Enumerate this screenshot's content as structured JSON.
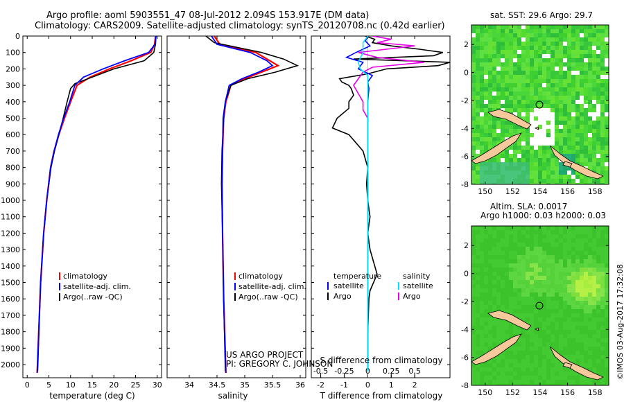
{
  "header": {
    "line1": "Argo profile: aoml 5903551_47 08-Jul-2012 2.094S 153.917E (DM data)",
    "line2": "Climatology: CARS2009. Satellite-adjusted climatology: synTS_20120708.nc (0.42d earlier)"
  },
  "maps": {
    "sst_title": "sat. SST: 29.6 Argo: 29.7",
    "sla_title1": "Altim. SLA: 0.0017",
    "sla_title2": "Argo h1000: 0.03 h2000: 0.03",
    "credit": "©IMOS 03-Aug-2017 17:32:08",
    "lon_ticks": [
      "150",
      "152",
      "154",
      "156",
      "158"
    ],
    "lat_ticks": [
      "2",
      "0",
      "-2",
      "-4",
      "-6",
      "-8"
    ],
    "float_location": {
      "lon": 153.917,
      "lat": -2.094
    }
  },
  "project": {
    "line1": "US ARGO PROJECT",
    "line2": "PI: GREGORY C. JOHNSON"
  },
  "legend_tsp": {
    "items": [
      "climatology",
      "satellite-adj. clim.",
      "Argo(..raw -QC)"
    ]
  },
  "legend_diff": {
    "temperature": "temperature",
    "salinity": "salinity",
    "satellite": "satellite",
    "argo": "Argo"
  },
  "colors": {
    "clim": "#ff0000",
    "sat": "#0000ff",
    "argo": "#000000",
    "sat_s": "#00e5ff",
    "argo_s": "#e600e6",
    "land": "#f5c99b"
  },
  "chart_data": [
    {
      "type": "line",
      "title": "",
      "xlabel": "temperature (deg C)",
      "ylabel": "",
      "xlim": [
        -1,
        31
      ],
      "ylim": [
        2080,
        0
      ],
      "xticks": [
        0,
        5,
        10,
        15,
        20,
        25,
        30
      ],
      "yticks": [
        0,
        100,
        200,
        300,
        400,
        500,
        600,
        700,
        800,
        900,
        1000,
        1100,
        1200,
        1300,
        1400,
        1500,
        1600,
        1700,
        1800,
        1900,
        2000
      ],
      "series": [
        {
          "name": "climatology",
          "depth": [
            0,
            50,
            100,
            150,
            200,
            250,
            300,
            400,
            500,
            600,
            700,
            800,
            1000,
            1200,
            1500,
            2050
          ],
          "values": [
            29.6,
            29.4,
            28.5,
            24,
            19,
            14.5,
            11.5,
            10,
            8.6,
            7.3,
            6.2,
            5.4,
            4.5,
            3.8,
            3.1,
            2.3
          ]
        },
        {
          "name": "satellite-adj. clim.",
          "depth": [
            0,
            50,
            100,
            150,
            200,
            250,
            300,
            400,
            500,
            600,
            700,
            800,
            1000,
            1200,
            1500,
            2050
          ],
          "values": [
            29.7,
            29.5,
            28,
            22.5,
            17.5,
            13,
            11,
            9.8,
            8.4,
            7.2,
            6.2,
            5.4,
            4.5,
            3.8,
            3.1,
            2.3
          ]
        },
        {
          "name": "Argo(..raw -QC)",
          "depth": [
            0,
            50,
            100,
            150,
            200,
            250,
            290,
            320,
            400,
            500,
            600,
            700,
            800,
            1000,
            1200,
            1500,
            2040
          ],
          "values": [
            29.7,
            29.6,
            29.2,
            27,
            20,
            15,
            11,
            10,
            9.2,
            8.3,
            7.3,
            6.3,
            5.5,
            4.5,
            3.8,
            3.1,
            2.4
          ]
        }
      ]
    },
    {
      "type": "line",
      "title": "",
      "xlabel": "salinity",
      "ylabel": "",
      "xlim": [
        33.6,
        36.1
      ],
      "ylim": [
        2080,
        0
      ],
      "xticks": [
        34,
        34.5,
        35,
        35.5,
        36
      ],
      "series": [
        {
          "name": "climatology",
          "depth": [
            0,
            50,
            100,
            150,
            180,
            220,
            260,
            300,
            400,
            500,
            700,
            900,
            1200,
            1600,
            2050
          ],
          "values": [
            34.45,
            34.55,
            35.2,
            35.45,
            35.6,
            35.3,
            35.0,
            34.75,
            34.66,
            34.62,
            34.6,
            34.59,
            34.6,
            34.62,
            34.66
          ]
        },
        {
          "name": "satellite-adj. clim.",
          "depth": [
            0,
            50,
            100,
            150,
            180,
            220,
            260,
            300,
            400,
            500,
            700,
            900,
            1200,
            1600,
            2050
          ],
          "values": [
            34.4,
            34.5,
            35.1,
            35.4,
            35.5,
            35.25,
            34.95,
            34.72,
            34.65,
            34.61,
            34.6,
            34.59,
            34.6,
            34.62,
            34.66
          ]
        },
        {
          "name": "Argo(..raw -QC)",
          "depth": [
            0,
            40,
            100,
            140,
            180,
            220,
            260,
            300,
            350,
            400,
            500,
            700,
            900,
            1200,
            1600,
            2040
          ],
          "values": [
            34.3,
            34.45,
            35.3,
            35.7,
            35.95,
            35.55,
            35.05,
            34.75,
            34.7,
            34.65,
            34.62,
            34.59,
            34.58,
            34.6,
            34.62,
            34.65
          ]
        }
      ]
    },
    {
      "type": "line",
      "title": "",
      "xlabel": "T difference from climatology",
      "xlabel2": "S difference from climatology",
      "xlim": [
        -2.4,
        3.5
      ],
      "ylim": [
        2080,
        0
      ],
      "xticks_T": [
        -2,
        -1,
        0,
        1,
        2
      ],
      "xticks_S": [
        -0.5,
        -0.25,
        0,
        0.25,
        0.5
      ],
      "xtick_labels_S": [
        "-0.5",
        "-0.25",
        "0",
        "0.25",
        "0.5"
      ],
      "series": [
        {
          "name": "temperature satellite",
          "depth": [
            0,
            30,
            60,
            100,
            130,
            160,
            200,
            240,
            280,
            320,
            400,
            600,
            1000,
            2040
          ],
          "values": [
            0,
            -0.1,
            0.1,
            -0.5,
            -0.9,
            -0.2,
            -0.4,
            0.2,
            0,
            0.05,
            0,
            0,
            0,
            0
          ]
        },
        {
          "name": "temperature Argo",
          "depth": [
            0,
            20,
            40,
            60,
            80,
            100,
            120,
            140,
            160,
            180,
            200,
            230,
            260,
            280,
            300,
            320,
            360,
            400,
            440,
            500,
            560,
            600,
            700,
            800,
            900,
            1000,
            1100,
            1200,
            1300,
            1400,
            1450,
            1500,
            1550,
            1600,
            1800,
            2040
          ],
          "values": [
            -0.1,
            0.3,
            0.2,
            1,
            2.2,
            3.2,
            2.8,
            -0.6,
            3.5,
            3.0,
            0.8,
            0,
            -1.2,
            -1.1,
            -0.8,
            -0.7,
            -0.6,
            -0.8,
            -0.8,
            -1.3,
            -1.5,
            -0.8,
            -0.2,
            0,
            -0.05,
            0,
            0.1,
            0,
            0.1,
            0.3,
            0.4,
            0.25,
            0.1,
            0.05,
            0,
            0
          ]
        },
        {
          "name": "salinity satellite",
          "depth": [
            0,
            40,
            100,
            160,
            200,
            240,
            300,
            400,
            600,
            1000,
            2040
          ],
          "values": [
            0,
            -0.05,
            -0.05,
            -0.1,
            -0.08,
            0,
            0,
            0,
            0,
            0,
            0
          ]
        },
        {
          "name": "salinity Argo",
          "depth": [
            0,
            20,
            40,
            60,
            80,
            100,
            130,
            160,
            190,
            220,
            260,
            300,
            350,
            400,
            450,
            500,
            600,
            1000,
            2040
          ],
          "values": [
            0.05,
            0.25,
            0.1,
            0.5,
            0.2,
            -0.1,
            0.1,
            0.6,
            0.05,
            -0.05,
            -0.1,
            -0.15,
            -0.1,
            -0.05,
            -0.05,
            0,
            0,
            0,
            0
          ]
        }
      ]
    }
  ]
}
